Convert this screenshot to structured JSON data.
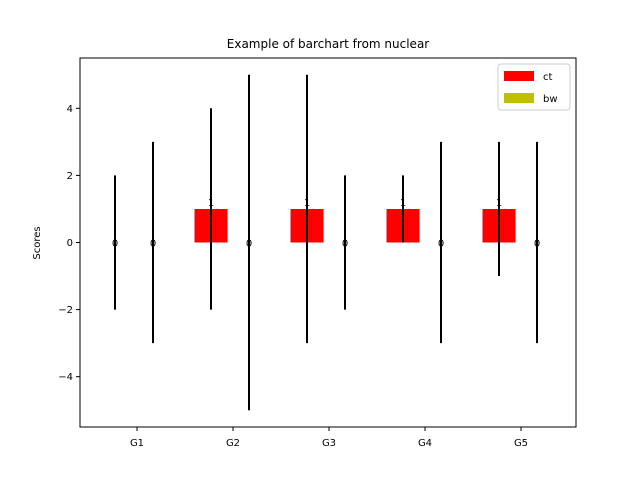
{
  "chart_data": {
    "type": "bar",
    "title": "Example of barchart from nuclear",
    "xlabel": "",
    "ylabel": "Scores",
    "categories": [
      "G1",
      "G2",
      "G3",
      "G4",
      "G5"
    ],
    "ylim": [
      -5.5,
      5.5
    ],
    "yticks": [
      -4,
      -2,
      0,
      2,
      4
    ],
    "ytick_labels": [
      "−4",
      "−2",
      "0",
      "2",
      "4"
    ],
    "grid": false,
    "legend_position": "top-right",
    "series": [
      {
        "name": "ct",
        "color": "#ff0000",
        "values": [
          0,
          1,
          1,
          1,
          1
        ],
        "error_low": [
          -2,
          -2,
          -3,
          0,
          -1
        ],
        "error_high": [
          2,
          4,
          5,
          2,
          3
        ],
        "value_labels": [
          "0",
          "1",
          "1",
          "1",
          "1"
        ]
      },
      {
        "name": "bw",
        "color": "#bfbf00",
        "values": [
          0,
          0,
          0,
          0,
          0
        ],
        "error_low": [
          -3,
          -5,
          -2,
          -3,
          -3
        ],
        "error_high": [
          3,
          5,
          2,
          3,
          3
        ],
        "value_labels": [
          "0",
          "0",
          "0",
          "0",
          "0"
        ]
      }
    ]
  }
}
